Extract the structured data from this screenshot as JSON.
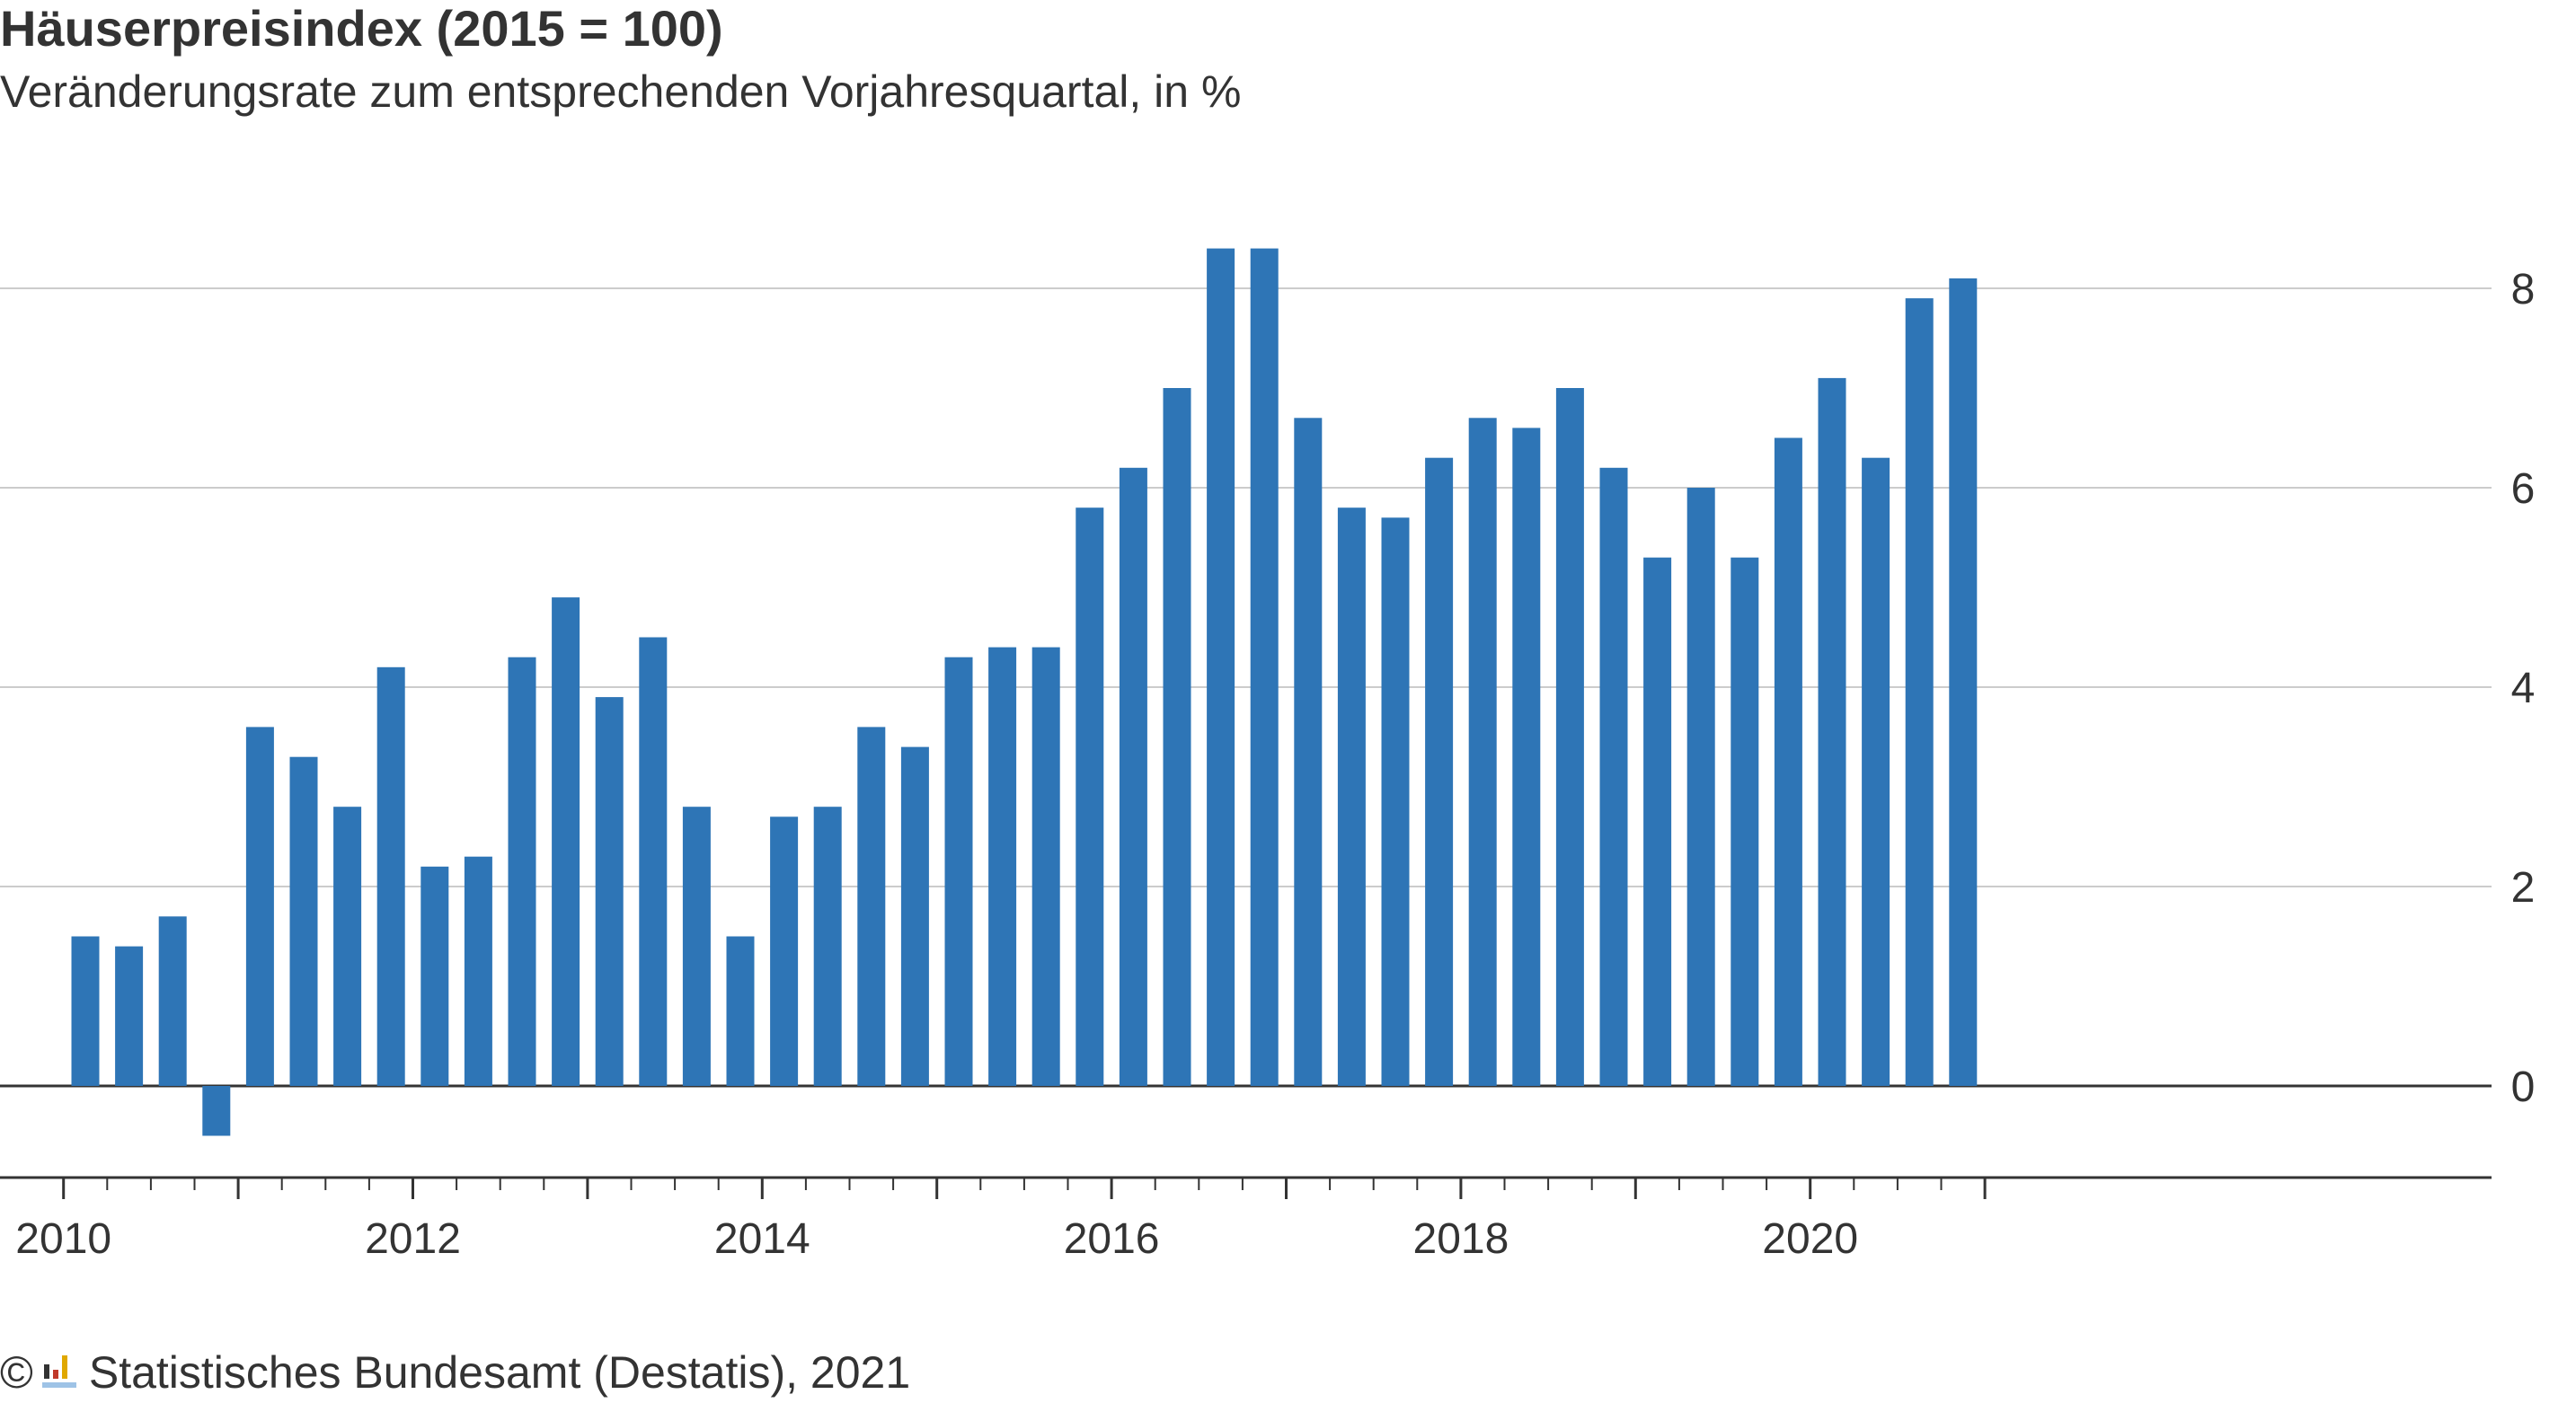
{
  "title": "Häuserpreisindex (2015 = 100)",
  "subtitle": "Veränderungsrate zum entsprechenden Vorjahresquartal, in %",
  "source": {
    "copyright_symbol": "©",
    "logo_icon": "destatis-logo-icon",
    "text": "Statistisches Bundesamt (Destatis), 2021"
  },
  "colors": {
    "bar": "#2e75b6",
    "grid": "#cccccc",
    "axis": "#333333",
    "text": "#333333"
  },
  "chart_data": {
    "type": "bar",
    "title": "Häuserpreisindex (2015 = 100)",
    "subtitle": "Veränderungsrate zum entsprechenden Vorjahresquartal, in %",
    "xlabel": "",
    "ylabel": "",
    "ylim": [
      -1,
      8.5
    ],
    "yticks": [
      0,
      2,
      4,
      6,
      8
    ],
    "y_axis_position": "right",
    "grid": true,
    "x_tick_labels": [
      "2010",
      "2012",
      "2014",
      "2016",
      "2018",
      "2020"
    ],
    "categories": [
      "2010 Q1",
      "2010 Q2",
      "2010 Q3",
      "2010 Q4",
      "2011 Q1",
      "2011 Q2",
      "2011 Q3",
      "2011 Q4",
      "2012 Q1",
      "2012 Q2",
      "2012 Q3",
      "2012 Q4",
      "2013 Q1",
      "2013 Q2",
      "2013 Q3",
      "2013 Q4",
      "2014 Q1",
      "2014 Q2",
      "2014 Q3",
      "2014 Q4",
      "2015 Q1",
      "2015 Q2",
      "2015 Q3",
      "2015 Q4",
      "2016 Q1",
      "2016 Q2",
      "2016 Q3",
      "2016 Q4",
      "2017 Q1",
      "2017 Q2",
      "2017 Q3",
      "2017 Q4",
      "2018 Q1",
      "2018 Q2",
      "2018 Q3",
      "2018 Q4",
      "2019 Q1",
      "2019 Q2",
      "2019 Q3",
      "2019 Q4",
      "2020 Q1",
      "2020 Q2",
      "2020 Q3",
      "2020 Q4"
    ],
    "values": [
      1.5,
      1.4,
      1.7,
      -0.5,
      3.6,
      3.3,
      2.8,
      4.2,
      2.2,
      2.3,
      4.3,
      4.9,
      3.9,
      4.5,
      2.8,
      1.5,
      2.7,
      2.8,
      3.6,
      3.4,
      4.3,
      4.4,
      4.4,
      5.8,
      6.2,
      7.0,
      8.4,
      8.4,
      6.7,
      5.8,
      5.7,
      6.3,
      6.7,
      6.6,
      7.0,
      6.2,
      5.3,
      6.0,
      5.3,
      6.5,
      7.1,
      6.3,
      7.9,
      8.1
    ]
  }
}
